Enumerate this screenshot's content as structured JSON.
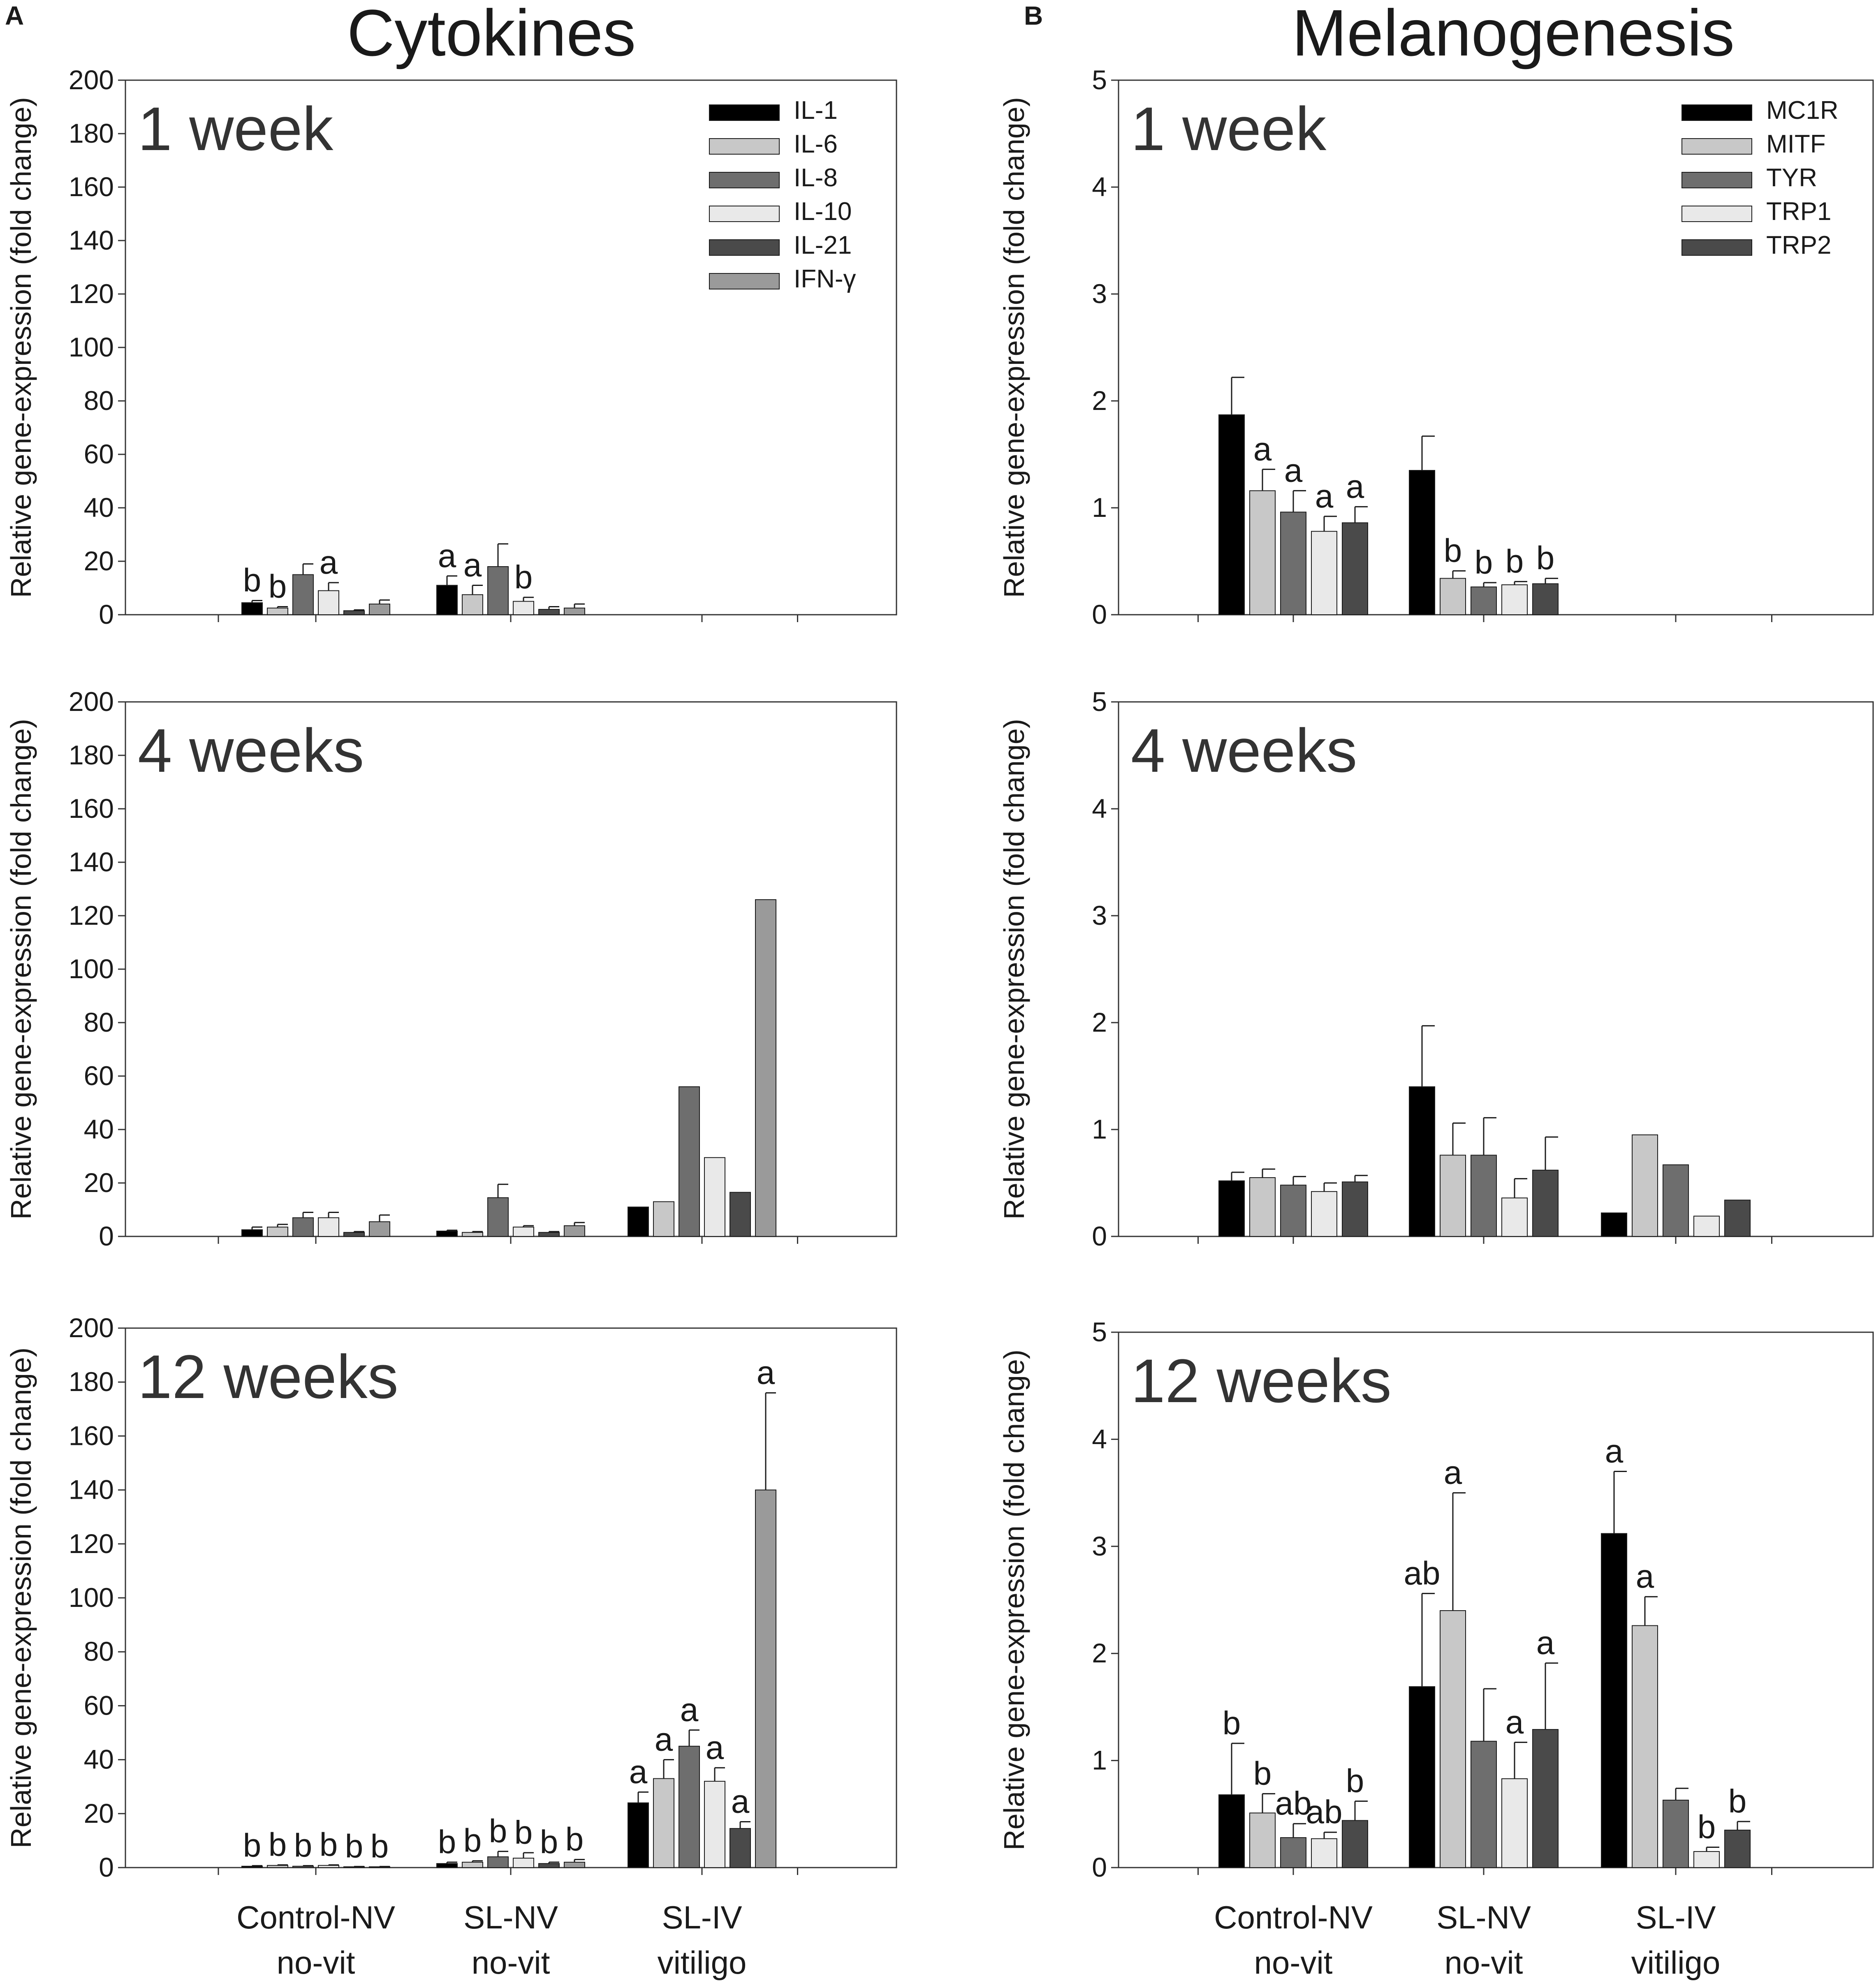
{
  "figure": {
    "panel_a_letter": "A",
    "panel_b_letter": "B",
    "col_a_title": "Cytokines",
    "col_b_title": "Melanogenesis",
    "y_axis_title": "Relative gene-expression (fold change)",
    "categories": [
      {
        "line1": "Control-NV",
        "line2": "no-vit"
      },
      {
        "line1": "SL-NV",
        "line2": "no-vit"
      },
      {
        "line1": "SL-IV",
        "line2": "vitiligo"
      }
    ]
  },
  "colors": {
    "series": [
      "#000000",
      "#c8c8c8",
      "#6e6e6e",
      "#e9e9e9",
      "#4a4a4a",
      "#9a9a9a"
    ],
    "axis": "#333333"
  },
  "chart_data": [
    {
      "id": "a1",
      "type": "bar",
      "column": "A",
      "title": "1 week",
      "ylabel": "Relative gene-expression (fold change)",
      "ylim": [
        0,
        200
      ],
      "yticks": [
        0,
        20,
        40,
        60,
        80,
        100,
        120,
        140,
        160,
        180,
        200
      ],
      "categories": [
        "Control-NV no-vit",
        "SL-NV no-vit",
        "SL-IV vitiligo"
      ],
      "legend": [
        "IL-1",
        "IL-6",
        "IL-8",
        "IL-10",
        "IL-21",
        "IFN-γ"
      ],
      "series": [
        {
          "name": "IL-1",
          "values": [
            4.5,
            11,
            null
          ],
          "errors": [
            0.8,
            3.5,
            null
          ],
          "labels": [
            "b",
            "a",
            ""
          ]
        },
        {
          "name": "IL-6",
          "values": [
            2.5,
            7.5,
            null
          ],
          "errors": [
            0.5,
            3.5,
            null
          ],
          "labels": [
            "b",
            "a",
            ""
          ]
        },
        {
          "name": "IL-8",
          "values": [
            15,
            18,
            null
          ],
          "errors": [
            4,
            8.5,
            null
          ],
          "labels": [
            "",
            "",
            ""
          ]
        },
        {
          "name": "IL-10",
          "values": [
            9,
            5,
            null
          ],
          "errors": [
            3,
            1.5,
            null
          ],
          "labels": [
            "a",
            "b",
            ""
          ]
        },
        {
          "name": "IL-21",
          "values": [
            1.5,
            2,
            null
          ],
          "errors": [
            0.3,
            1,
            null
          ],
          "labels": [
            "",
            "",
            ""
          ]
        },
        {
          "name": "IFN-γ",
          "values": [
            4,
            2.5,
            null
          ],
          "errors": [
            1.5,
            1.5,
            null
          ],
          "labels": [
            "",
            "",
            ""
          ]
        }
      ]
    },
    {
      "id": "a2",
      "type": "bar",
      "column": "A",
      "title": "4 weeks",
      "ylabel": "Relative gene-expression (fold change)",
      "ylim": [
        0,
        200
      ],
      "yticks": [
        0,
        20,
        40,
        60,
        80,
        100,
        120,
        140,
        160,
        180,
        200
      ],
      "categories": [
        "Control-NV no-vit",
        "SL-NV no-vit",
        "SL-IV vitiligo"
      ],
      "series": [
        {
          "name": "IL-1",
          "values": [
            2.5,
            2,
            11
          ],
          "errors": [
            1,
            0.3,
            null
          ],
          "labels": [
            "",
            "",
            ""
          ]
        },
        {
          "name": "IL-6",
          "values": [
            3.5,
            1.5,
            13
          ],
          "errors": [
            1,
            0.3,
            null
          ],
          "labels": [
            "",
            "",
            ""
          ]
        },
        {
          "name": "IL-8",
          "values": [
            7,
            14.5,
            56
          ],
          "errors": [
            2,
            5,
            null
          ],
          "labels": [
            "",
            "",
            ""
          ]
        },
        {
          "name": "IL-10",
          "values": [
            7,
            3.5,
            29.5
          ],
          "errors": [
            2,
            0.5,
            null
          ],
          "labels": [
            "",
            "",
            ""
          ]
        },
        {
          "name": "IL-21",
          "values": [
            1.5,
            1.5,
            16.5
          ],
          "errors": [
            0.3,
            0.3,
            null
          ],
          "labels": [
            "",
            "",
            ""
          ]
        },
        {
          "name": "IFN-γ",
          "values": [
            5.5,
            4,
            126
          ],
          "errors": [
            2.5,
            1.2,
            null
          ],
          "labels": [
            "",
            "",
            ""
          ]
        }
      ]
    },
    {
      "id": "a3",
      "type": "bar",
      "column": "A",
      "title": "12 weeks",
      "ylabel": "Relative gene-expression (fold change)",
      "ylim": [
        0,
        200
      ],
      "yticks": [
        0,
        20,
        40,
        60,
        80,
        100,
        120,
        140,
        160,
        180,
        200
      ],
      "categories": [
        "Control-NV no-vit",
        "SL-NV no-vit",
        "SL-IV vitiligo"
      ],
      "series": [
        {
          "name": "IL-1",
          "values": [
            0.5,
            1.5,
            24
          ],
          "errors": [
            0.2,
            0.5,
            4
          ],
          "labels": [
            "b",
            "b",
            "a"
          ]
        },
        {
          "name": "IL-6",
          "values": [
            0.8,
            2,
            33
          ],
          "errors": [
            0.2,
            0.5,
            7
          ],
          "labels": [
            "b",
            "b",
            "a"
          ]
        },
        {
          "name": "IL-8",
          "values": [
            0.5,
            4,
            45
          ],
          "errors": [
            0.2,
            2,
            6
          ],
          "labels": [
            "b",
            "b",
            "a"
          ]
        },
        {
          "name": "IL-10",
          "values": [
            0.8,
            3.5,
            32
          ],
          "errors": [
            0.2,
            2,
            5
          ],
          "labels": [
            "b",
            "b",
            "a"
          ]
        },
        {
          "name": "IL-21",
          "values": [
            0.3,
            1.5,
            14.5
          ],
          "errors": [
            0.1,
            0.5,
            2.5
          ],
          "labels": [
            "b",
            "b",
            "a"
          ]
        },
        {
          "name": "IFN-γ",
          "values": [
            0.3,
            2,
            140
          ],
          "errors": [
            0.1,
            1,
            36
          ],
          "labels": [
            "b",
            "b",
            "a"
          ]
        }
      ]
    },
    {
      "id": "b1",
      "type": "bar",
      "column": "B",
      "title": "1 week",
      "ylabel": "Relative gene-expression (fold change)",
      "ylim": [
        0,
        5
      ],
      "yticks": [
        0,
        1,
        2,
        3,
        4,
        5
      ],
      "categories": [
        "Control-NV no-vit",
        "SL-NV no-vit",
        "SL-IV vitiligo"
      ],
      "legend": [
        "MC1R",
        "MITF",
        "TYR",
        "TRP1",
        "TRP2"
      ],
      "series": [
        {
          "name": "MC1R",
          "values": [
            1.87,
            1.35,
            null
          ],
          "errors": [
            0.35,
            0.32,
            null
          ],
          "labels": [
            "",
            "",
            ""
          ]
        },
        {
          "name": "MITF",
          "values": [
            1.16,
            0.34,
            null
          ],
          "errors": [
            0.2,
            0.07,
            null
          ],
          "labels": [
            "a",
            "b",
            ""
          ]
        },
        {
          "name": "TYR",
          "values": [
            0.96,
            0.26,
            null
          ],
          "errors": [
            0.2,
            0.04,
            null
          ],
          "labels": [
            "a",
            "b",
            ""
          ]
        },
        {
          "name": "TRP1",
          "values": [
            0.78,
            0.28,
            null
          ],
          "errors": [
            0.14,
            0.03,
            null
          ],
          "labels": [
            "a",
            "b",
            ""
          ]
        },
        {
          "name": "TRP2",
          "values": [
            0.86,
            0.29,
            null
          ],
          "errors": [
            0.15,
            0.05,
            null
          ],
          "labels": [
            "a",
            "b",
            ""
          ]
        }
      ]
    },
    {
      "id": "b2",
      "type": "bar",
      "column": "B",
      "title": "4 weeks",
      "ylabel": "Relative gene-expression (fold change)",
      "ylim": [
        0,
        5
      ],
      "yticks": [
        0,
        1,
        2,
        3,
        4,
        5
      ],
      "categories": [
        "Control-NV no-vit",
        "SL-NV no-vit",
        "SL-IV vitiligo"
      ],
      "series": [
        {
          "name": "MC1R",
          "values": [
            0.52,
            1.4,
            0.22
          ],
          "errors": [
            0.08,
            0.57,
            null
          ],
          "labels": [
            "",
            "",
            ""
          ]
        },
        {
          "name": "MITF",
          "values": [
            0.55,
            0.76,
            0.95
          ],
          "errors": [
            0.08,
            0.3,
            null
          ],
          "labels": [
            "",
            "",
            ""
          ]
        },
        {
          "name": "TYR",
          "values": [
            0.48,
            0.76,
            0.67
          ],
          "errors": [
            0.08,
            0.35,
            null
          ],
          "labels": [
            "",
            "",
            ""
          ]
        },
        {
          "name": "TRP1",
          "values": [
            0.42,
            0.36,
            0.19
          ],
          "errors": [
            0.08,
            0.18,
            null
          ],
          "labels": [
            "",
            "",
            ""
          ]
        },
        {
          "name": "TRP2",
          "values": [
            0.51,
            0.62,
            0.34
          ],
          "errors": [
            0.06,
            0.31,
            null
          ],
          "labels": [
            "",
            "",
            ""
          ]
        }
      ]
    },
    {
      "id": "b3",
      "type": "bar",
      "column": "B",
      "title": "12 weeks",
      "ylabel": "Relative gene-expression (fold change)",
      "ylim": [
        0,
        5
      ],
      "yticks": [
        0,
        1,
        2,
        3,
        4,
        5
      ],
      "categories": [
        "Control-NV no-vit",
        "SL-NV no-vit",
        "SL-IV vitiligo"
      ],
      "series": [
        {
          "name": "MC1R",
          "values": [
            0.68,
            1.69,
            3.12
          ],
          "errors": [
            0.48,
            0.87,
            0.58
          ],
          "labels": [
            "b",
            "ab",
            "a"
          ]
        },
        {
          "name": "MITF",
          "values": [
            0.51,
            2.4,
            2.26
          ],
          "errors": [
            0.18,
            1.1,
            0.27
          ],
          "labels": [
            "b",
            "a",
            "a"
          ]
        },
        {
          "name": "TYR",
          "values": [
            0.28,
            1.18,
            0.63
          ],
          "errors": [
            0.13,
            0.49,
            0.11
          ],
          "labels": [
            "ab",
            "",
            ""
          ]
        },
        {
          "name": "TRP1",
          "values": [
            0.27,
            0.83,
            0.15
          ],
          "errors": [
            0.06,
            0.34,
            0.04
          ],
          "labels": [
            "ab",
            "a",
            "b"
          ]
        },
        {
          "name": "TRP2",
          "values": [
            0.44,
            1.29,
            0.35
          ],
          "errors": [
            0.18,
            0.62,
            0.08
          ],
          "labels": [
            "b",
            "a",
            "b"
          ]
        }
      ]
    }
  ]
}
